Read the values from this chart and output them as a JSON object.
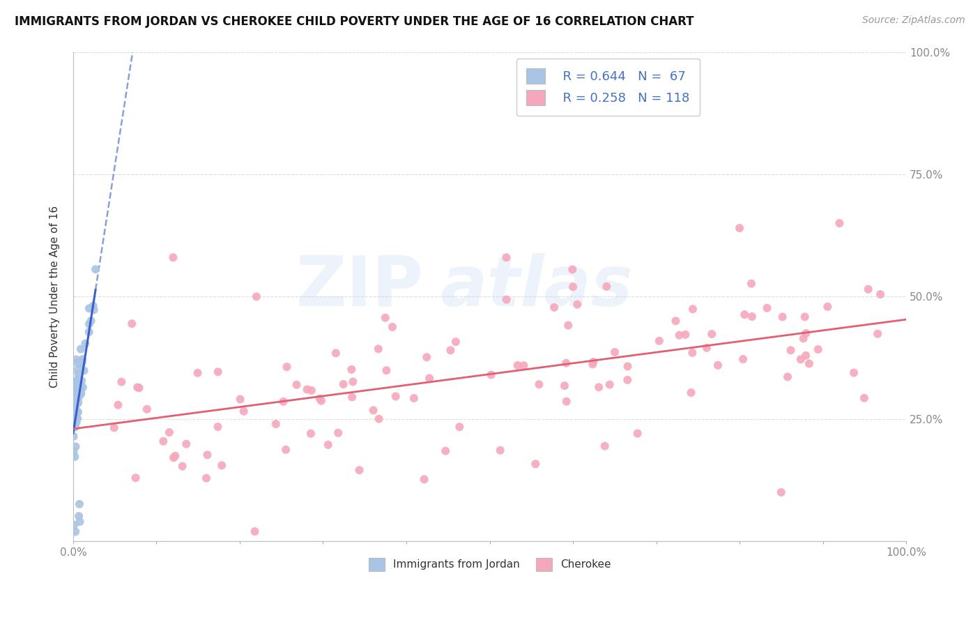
{
  "title": "IMMIGRANTS FROM JORDAN VS CHEROKEE CHILD POVERTY UNDER THE AGE OF 16 CORRELATION CHART",
  "source_text": "Source: ZipAtlas.com",
  "ylabel": "Child Poverty Under the Age of 16",
  "xlim": [
    0.0,
    1.0
  ],
  "ylim": [
    0.0,
    1.0
  ],
  "legend_r1": "R = 0.644",
  "legend_n1": "N =  67",
  "legend_r2": "R = 0.258",
  "legend_n2": "N = 118",
  "color_jordan": "#aac4e4",
  "color_cherokee": "#f5a8bc",
  "regression_color_jordan": "#3a5fcc",
  "regression_color_cherokee": "#e06070",
  "text_color": "#4472c4",
  "grid_color": "#dddddd",
  "tick_color": "#888888"
}
